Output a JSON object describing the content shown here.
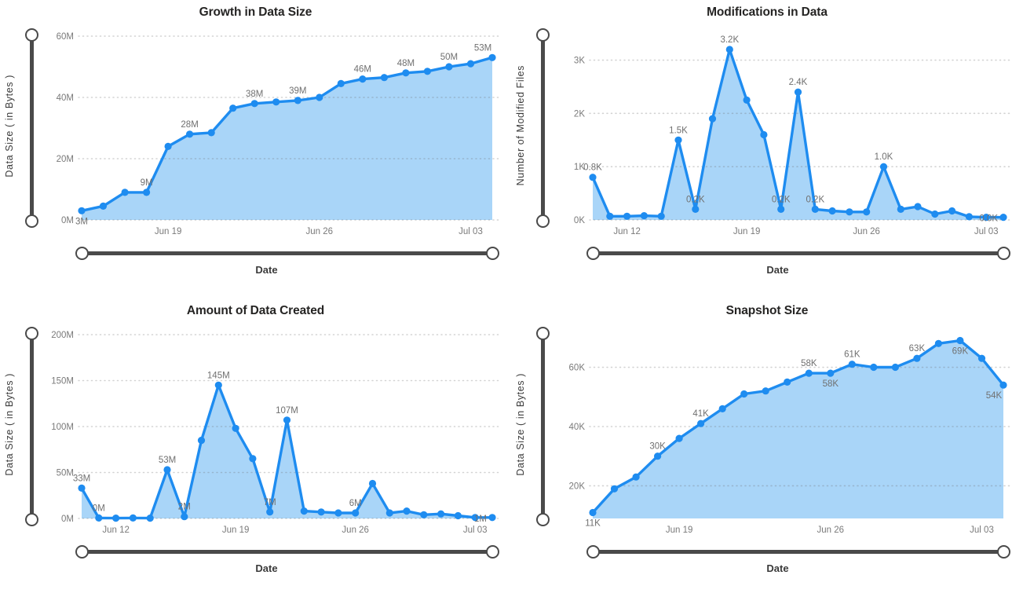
{
  "colors": {
    "line": "#1E8CF0",
    "fill": "#A9D5F8",
    "grid": "#DCDCDC",
    "grid_over_fill": "rgba(110,110,110,0.30)",
    "tick_text": "#7A7A7A",
    "data_label_text": "#707070",
    "title_text": "#252423",
    "axis_title_text": "#3A3A3A",
    "slider": "#4A4A4A",
    "background": "#FFFFFF"
  },
  "chart_data": [
    {
      "id": "growth-in-data-size",
      "type": "area",
      "title": "Growth in Data Size",
      "xlabel": "Date",
      "ylabel": "Data Size ( in Bytes )",
      "legend": "none",
      "grid": "horizontal-dotted",
      "ylim": [
        0,
        60
      ],
      "values": [
        3,
        4.5,
        9,
        9,
        24,
        28,
        28.5,
        36.5,
        38,
        38.5,
        39,
        40,
        44.5,
        46,
        46.5,
        48,
        48.5,
        50,
        51,
        53
      ],
      "yticks": [
        {
          "value": 0,
          "label": "0M"
        },
        {
          "value": 20,
          "label": "20M"
        },
        {
          "value": 40,
          "label": "40M"
        },
        {
          "value": 60,
          "label": "60M"
        }
      ],
      "xticks": [
        {
          "index": 4,
          "label": "Jun 19"
        },
        {
          "index": 11,
          "label": "Jun 26"
        },
        {
          "index": 18,
          "label": "Jul 03"
        }
      ],
      "data_labels": [
        {
          "index": 0,
          "text": "3M",
          "position": "below"
        },
        {
          "index": 3,
          "text": "9M",
          "position": "above"
        },
        {
          "index": 5,
          "text": "28M",
          "position": "above"
        },
        {
          "index": 8,
          "text": "38M",
          "position": "above"
        },
        {
          "index": 10,
          "text": "39M",
          "position": "above"
        },
        {
          "index": 13,
          "text": "46M",
          "position": "above"
        },
        {
          "index": 15,
          "text": "48M",
          "position": "above"
        },
        {
          "index": 17,
          "text": "50M",
          "position": "above"
        },
        {
          "index": 19,
          "text": "53M",
          "position": "above"
        }
      ]
    },
    {
      "id": "modifications-in-data",
      "type": "area",
      "title": "Modifications in Data",
      "xlabel": "Date",
      "ylabel": "Number of Modified Files",
      "legend": "none",
      "grid": "horizontal-dotted",
      "ylim": [
        0,
        3.45
      ],
      "values": [
        0.8,
        0.07,
        0.07,
        0.08,
        0.07,
        1.5,
        0.2,
        1.9,
        3.2,
        2.25,
        1.6,
        0.2,
        2.4,
        0.2,
        0.17,
        0.15,
        0.15,
        1.0,
        0.2,
        0.25,
        0.11,
        0.17,
        0.06,
        0.05,
        0.05
      ],
      "yticks": [
        {
          "value": 0,
          "label": "0K"
        },
        {
          "value": 1,
          "label": "1K"
        },
        {
          "value": 2,
          "label": "2K"
        },
        {
          "value": 3,
          "label": "3K"
        }
      ],
      "xticks": [
        {
          "index": 2,
          "label": "Jun 12"
        },
        {
          "index": 9,
          "label": "Jun 19"
        },
        {
          "index": 16,
          "label": "Jun 26"
        },
        {
          "index": 23,
          "label": "Jul 03"
        }
      ],
      "data_labels": [
        {
          "index": 0,
          "text": "0.8K",
          "position": "above"
        },
        {
          "index": 5,
          "text": "1.5K",
          "position": "above"
        },
        {
          "index": 6,
          "text": "0.2K",
          "position": "above"
        },
        {
          "index": 8,
          "text": "3.2K",
          "position": "above"
        },
        {
          "index": 11,
          "text": "0.2K",
          "position": "above"
        },
        {
          "index": 12,
          "text": "2.4K",
          "position": "above"
        },
        {
          "index": 13,
          "text": "0.2K",
          "position": "above"
        },
        {
          "index": 17,
          "text": "1.0K",
          "position": "above"
        },
        {
          "index": 24,
          "text": "0.0K",
          "position": "left"
        }
      ]
    },
    {
      "id": "amount-of-data-created",
      "type": "area",
      "title": "Amount of Data Created",
      "xlabel": "Date",
      "ylabel": "Data Size ( in Bytes )",
      "legend": "none",
      "grid": "horizontal-dotted",
      "ylim": [
        0,
        200
      ],
      "values": [
        33,
        0.5,
        0.3,
        0.5,
        0.3,
        53,
        2,
        85,
        145,
        98,
        65,
        7,
        107,
        8,
        7,
        6,
        6,
        38,
        6,
        8,
        4,
        5,
        3,
        1,
        1
      ],
      "yticks": [
        {
          "value": 0,
          "label": "0M"
        },
        {
          "value": 50,
          "label": "50M"
        },
        {
          "value": 100,
          "label": "100M"
        },
        {
          "value": 150,
          "label": "150M"
        },
        {
          "value": 200,
          "label": "200M"
        }
      ],
      "xticks": [
        {
          "index": 2,
          "label": "Jun 12"
        },
        {
          "index": 9,
          "label": "Jun 19"
        },
        {
          "index": 16,
          "label": "Jun 26"
        },
        {
          "index": 23,
          "label": "Jul 03"
        }
      ],
      "data_labels": [
        {
          "index": 0,
          "text": "33M",
          "position": "above"
        },
        {
          "index": 1,
          "text": "0M",
          "position": "above"
        },
        {
          "index": 5,
          "text": "53M",
          "position": "above"
        },
        {
          "index": 6,
          "text": "2M",
          "position": "above"
        },
        {
          "index": 8,
          "text": "145M",
          "position": "above"
        },
        {
          "index": 11,
          "text": "7M",
          "position": "above"
        },
        {
          "index": 12,
          "text": "107M",
          "position": "above"
        },
        {
          "index": 16,
          "text": "6M",
          "position": "above"
        },
        {
          "index": 24,
          "text": "1M",
          "position": "left"
        }
      ]
    },
    {
      "id": "snapshot-size",
      "type": "area",
      "title": "Snapshot Size",
      "xlabel": "Date",
      "ylabel": "Data Size ( in Bytes )",
      "legend": "none",
      "grid": "horizontal-dotted",
      "ylim": [
        9,
        71
      ],
      "values": [
        11,
        19,
        23,
        30,
        36,
        41,
        46,
        51,
        52,
        55,
        58,
        58,
        61,
        60,
        60,
        63,
        68,
        69,
        63,
        54
      ],
      "yticks": [
        {
          "value": 20,
          "label": "20K"
        },
        {
          "value": 40,
          "label": "40K"
        },
        {
          "value": 60,
          "label": "60K"
        }
      ],
      "xticks": [
        {
          "index": 4,
          "label": "Jun 19"
        },
        {
          "index": 11,
          "label": "Jun 26"
        },
        {
          "index": 18,
          "label": "Jul 03"
        }
      ],
      "data_labels": [
        {
          "index": 0,
          "text": "11K",
          "position": "below"
        },
        {
          "index": 3,
          "text": "30K",
          "position": "above"
        },
        {
          "index": 5,
          "text": "41K",
          "position": "above"
        },
        {
          "index": 10,
          "text": "58K",
          "position": "above"
        },
        {
          "index": 11,
          "text": "58K",
          "position": "below"
        },
        {
          "index": 12,
          "text": "61K",
          "position": "above"
        },
        {
          "index": 15,
          "text": "63K",
          "position": "above"
        },
        {
          "index": 17,
          "text": "69K",
          "position": "below"
        },
        {
          "index": 19,
          "text": "54K",
          "position": "below"
        }
      ]
    }
  ]
}
